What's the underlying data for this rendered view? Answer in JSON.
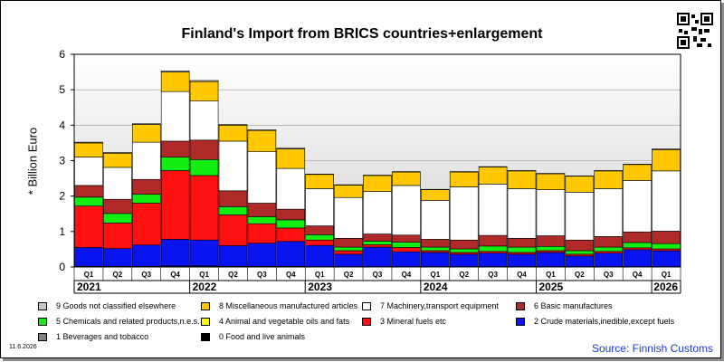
{
  "title": "Finland's Import from BRICS countries+enlargement",
  "date": "11.6.2026",
  "source": "Source: Finnish Customs",
  "qr_icon": "qr-code-icon",
  "chart_data": {
    "type": "bar",
    "stacked": true,
    "ylabel": "* Billion Euro",
    "ylim": [
      0,
      6
    ],
    "yticks": [
      0,
      1,
      2,
      3,
      4,
      5,
      6
    ],
    "grid": true,
    "legend_position": "bottom",
    "categories": [
      "Q1",
      "Q2",
      "Q3",
      "Q4",
      "Q1",
      "Q2",
      "Q3",
      "Q4",
      "Q1",
      "Q2",
      "Q3",
      "Q4",
      "Q1",
      "Q2",
      "Q3",
      "Q4",
      "Q1",
      "Q2",
      "Q3",
      "Q4",
      "Q1"
    ],
    "years": [
      {
        "label": "2021",
        "start": 0,
        "span": 4
      },
      {
        "label": "2022",
        "start": 4,
        "span": 4
      },
      {
        "label": "2023",
        "start": 8,
        "span": 4
      },
      {
        "label": "2024",
        "start": 12,
        "span": 4
      },
      {
        "label": "2025",
        "start": 16,
        "span": 4
      },
      {
        "label": "2026",
        "start": 20,
        "span": 1
      }
    ],
    "series": [
      {
        "name": "0 Food and live animals",
        "color": "#000000",
        "values": [
          0.02,
          0.02,
          0.02,
          0.03,
          0.03,
          0.02,
          0.02,
          0.02,
          0.01,
          0.01,
          0.01,
          0.01,
          0.01,
          0.01,
          0.01,
          0.01,
          0.01,
          0.01,
          0.01,
          0.01,
          0.01
        ]
      },
      {
        "name": "1 Beverages and tobacco",
        "color": "#808080",
        "values": [
          0.0,
          0.0,
          0.0,
          0.0,
          0.0,
          0.0,
          0.0,
          0.0,
          0.0,
          0.0,
          0.0,
          0.0,
          0.0,
          0.0,
          0.0,
          0.0,
          0.0,
          0.0,
          0.0,
          0.0,
          0.0
        ]
      },
      {
        "name": "2 Crude materials,inedible,except fuels",
        "color": "#0a14f0",
        "values": [
          0.53,
          0.5,
          0.6,
          0.75,
          0.73,
          0.58,
          0.65,
          0.7,
          0.6,
          0.35,
          0.55,
          0.42,
          0.4,
          0.35,
          0.38,
          0.35,
          0.4,
          0.3,
          0.38,
          0.48,
          0.45
        ]
      },
      {
        "name": "3 Mineral fuels etc",
        "color": "#ff1010",
        "values": [
          1.17,
          0.72,
          1.18,
          1.94,
          1.82,
          0.87,
          0.55,
          0.38,
          0.15,
          0.1,
          0.07,
          0.12,
          0.05,
          0.05,
          0.05,
          0.05,
          0.05,
          0.05,
          0.05,
          0.05,
          0.05
        ]
      },
      {
        "name": "4 Animal and vegetable oils and fats",
        "color": "#ffff00",
        "values": [
          0.0,
          0.0,
          0.0,
          0.0,
          0.0,
          0.0,
          0.0,
          0.0,
          0.0,
          0.0,
          0.0,
          0.0,
          0.0,
          0.0,
          0.0,
          0.0,
          0.0,
          0.0,
          0.0,
          0.0,
          0.0
        ]
      },
      {
        "name": "5 Chemicals and related products,n.e.s.",
        "color": "#12ee12",
        "values": [
          0.25,
          0.27,
          0.25,
          0.38,
          0.45,
          0.23,
          0.2,
          0.23,
          0.15,
          0.1,
          0.1,
          0.15,
          0.1,
          0.1,
          0.15,
          0.15,
          0.12,
          0.1,
          0.12,
          0.15,
          0.15
        ]
      },
      {
        "name": "6 Basic manufactures",
        "color": "#b02a2a",
        "values": [
          0.33,
          0.4,
          0.42,
          0.45,
          0.55,
          0.45,
          0.38,
          0.3,
          0.25,
          0.25,
          0.2,
          0.2,
          0.22,
          0.25,
          0.3,
          0.25,
          0.3,
          0.3,
          0.3,
          0.3,
          0.35
        ]
      },
      {
        "name": "7 Machinery,transport equipment",
        "color": "#ffffff",
        "values": [
          0.8,
          0.9,
          1.05,
          1.4,
          1.1,
          1.4,
          1.45,
          1.15,
          1.05,
          1.15,
          1.2,
          1.4,
          1.1,
          1.5,
          1.45,
          1.4,
          1.3,
          1.35,
          1.35,
          1.45,
          1.7
        ]
      },
      {
        "name": "8 Miscellaneous manufactured articles",
        "color": "#ffc800",
        "values": [
          0.4,
          0.4,
          0.5,
          0.55,
          0.55,
          0.45,
          0.6,
          0.55,
          0.4,
          0.35,
          0.45,
          0.38,
          0.3,
          0.42,
          0.48,
          0.5,
          0.45,
          0.45,
          0.5,
          0.45,
          0.6
        ]
      },
      {
        "name": "9 Goods not classified elsewhere",
        "color": "#c8c8c8",
        "values": [
          0.02,
          0.02,
          0.02,
          0.03,
          0.03,
          0.02,
          0.02,
          0.02,
          0.01,
          0.01,
          0.01,
          0.01,
          0.01,
          0.01,
          0.01,
          0.01,
          0.01,
          0.01,
          0.01,
          0.01,
          0.02
        ]
      }
    ],
    "legend_order": [
      9,
      8,
      7,
      6,
      5,
      4,
      3,
      2,
      1,
      0
    ]
  }
}
